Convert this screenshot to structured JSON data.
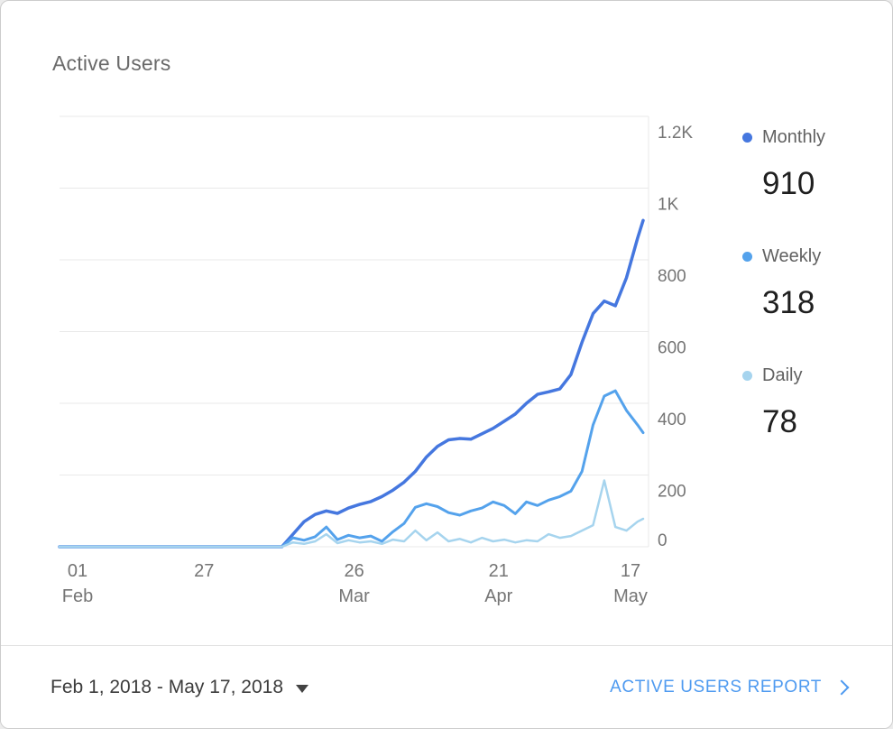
{
  "card": {
    "title": "Active Users"
  },
  "chart_data": {
    "type": "line",
    "title": "Active Users",
    "x_max": 105,
    "ylim": [
      0,
      1200
    ],
    "grid": true,
    "legend_position": "right",
    "grid_color": "#e9e9e9",
    "axis_label_color": "#757575",
    "y_ticks": [
      {
        "value": 0,
        "label": "0"
      },
      {
        "value": 200,
        "label": "200"
      },
      {
        "value": 400,
        "label": "400"
      },
      {
        "value": 600,
        "label": "600"
      },
      {
        "value": 800,
        "label": "800"
      },
      {
        "value": 1000,
        "label": "1K"
      },
      {
        "value": 1200,
        "label": "1.2K"
      }
    ],
    "x_ticks": [
      {
        "day": 0,
        "line1": "01",
        "line2": "Feb"
      },
      {
        "day": 26,
        "line1": "27",
        "line2": ""
      },
      {
        "day": 53,
        "line1": "26",
        "line2": "Mar"
      },
      {
        "day": 79,
        "line1": "21",
        "line2": "Apr"
      },
      {
        "day": 105,
        "line1": "17",
        "line2": "May"
      }
    ],
    "x_days": [
      0,
      2,
      4,
      6,
      8,
      10,
      12,
      14,
      16,
      18,
      20,
      22,
      24,
      26,
      28,
      30,
      32,
      34,
      36,
      38,
      40,
      42,
      44,
      46,
      48,
      50,
      52,
      54,
      56,
      58,
      60,
      62,
      64,
      66,
      68,
      70,
      72,
      74,
      76,
      78,
      80,
      82,
      84,
      86,
      88,
      90,
      92,
      94,
      96,
      98,
      100,
      102,
      104,
      105
    ],
    "series": [
      {
        "name": "Monthly",
        "current": 910,
        "color": "#4577df",
        "stroke_width": 3.5,
        "values": [
          0,
          0,
          0,
          0,
          0,
          0,
          0,
          0,
          0,
          0,
          0,
          0,
          0,
          0,
          0,
          0,
          0,
          0,
          0,
          0,
          0,
          35,
          70,
          90,
          100,
          93,
          108,
          118,
          126,
          140,
          158,
          180,
          210,
          250,
          280,
          298,
          302,
          300,
          315,
          330,
          350,
          370,
          400,
          425,
          432,
          440,
          480,
          570,
          650,
          685,
          672,
          750,
          860,
          910
        ]
      },
      {
        "name": "Weekly",
        "current": 318,
        "color": "#54a2ec",
        "stroke_width": 3,
        "values": [
          0,
          0,
          0,
          0,
          0,
          0,
          0,
          0,
          0,
          0,
          0,
          0,
          0,
          0,
          0,
          0,
          0,
          0,
          0,
          0,
          0,
          25,
          18,
          28,
          55,
          20,
          32,
          25,
          30,
          15,
          42,
          65,
          110,
          120,
          112,
          95,
          88,
          100,
          108,
          125,
          115,
          92,
          125,
          115,
          130,
          140,
          155,
          210,
          340,
          420,
          435,
          380,
          340,
          318
        ]
      },
      {
        "name": "Daily",
        "current": 78,
        "color": "#a6d4ee",
        "stroke_width": 2.5,
        "values": [
          0,
          0,
          0,
          0,
          0,
          0,
          0,
          0,
          0,
          0,
          0,
          0,
          0,
          0,
          0,
          0,
          0,
          0,
          0,
          0,
          0,
          12,
          8,
          15,
          35,
          10,
          18,
          12,
          15,
          8,
          20,
          15,
          45,
          18,
          40,
          15,
          22,
          12,
          25,
          15,
          20,
          12,
          18,
          15,
          35,
          25,
          30,
          45,
          60,
          185,
          55,
          45,
          70,
          78
        ]
      }
    ]
  },
  "footer": {
    "date_range": "Feb 1, 2018 - May 17, 2018",
    "report_link": "ACTIVE USERS REPORT",
    "link_color": "#4e9af0"
  }
}
